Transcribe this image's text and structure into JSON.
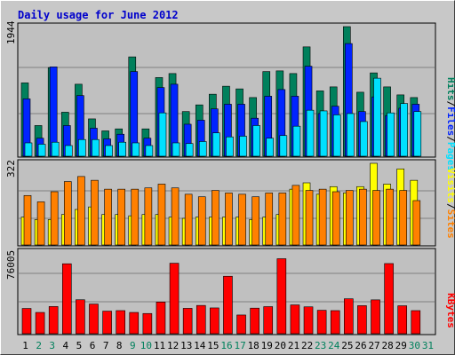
{
  "chart_data": [
    {
      "type": "bar",
      "panel": "hits-files-pages",
      "title": "Daily usage for June 2012",
      "categories": [
        "1",
        "2",
        "3",
        "4",
        "5",
        "6",
        "7",
        "8",
        "9",
        "10",
        "11",
        "12",
        "13",
        "14",
        "15",
        "16",
        "17",
        "18",
        "19",
        "20",
        "21",
        "22",
        "23",
        "24",
        "25",
        "26",
        "27",
        "28",
        "29",
        "30",
        "31"
      ],
      "ymax_label": "1944",
      "ylim": [
        0,
        1944
      ],
      "series": [
        {
          "name": "Hits",
          "color": "#00805c",
          "values": [
            1100,
            460,
            1330,
            660,
            1080,
            560,
            380,
            410,
            1490,
            410,
            1180,
            1240,
            670,
            770,
            930,
            1050,
            1010,
            880,
            1270,
            1280,
            1240,
            1640,
            980,
            1040,
            1944,
            960,
            1250,
            1040,
            920,
            880,
            null
          ]
        },
        {
          "name": "Files",
          "color": "#0024ff",
          "values": [
            860,
            270,
            1340,
            460,
            910,
            420,
            260,
            330,
            1270,
            270,
            1030,
            1080,
            480,
            540,
            710,
            780,
            780,
            570,
            900,
            1000,
            900,
            1350,
            640,
            750,
            1690,
            670,
            890,
            610,
            720,
            780,
            null
          ]
        },
        {
          "name": "Pages",
          "color": "#00e0ff",
          "values": [
            200,
            180,
            210,
            160,
            250,
            250,
            160,
            210,
            200,
            160,
            650,
            200,
            190,
            220,
            350,
            290,
            300,
            460,
            270,
            310,
            450,
            690,
            680,
            620,
            640,
            520,
            1170,
            650,
            790,
            670,
            null
          ]
        }
      ],
      "grid": true
    },
    {
      "type": "bar",
      "panel": "visits-sites",
      "categories": [
        "1",
        "2",
        "3",
        "4",
        "5",
        "6",
        "7",
        "8",
        "9",
        "10",
        "11",
        "12",
        "13",
        "14",
        "15",
        "16",
        "17",
        "18",
        "19",
        "20",
        "21",
        "22",
        "23",
        "24",
        "25",
        "26",
        "27",
        "28",
        "29",
        "30",
        "31"
      ],
      "ymax_label": "322",
      "ylim": [
        0,
        322
      ],
      "series": [
        {
          "name": "Visits",
          "color": "#ffff00",
          "values": [
            110,
            100,
            100,
            120,
            140,
            150,
            120,
            120,
            115,
            120,
            120,
            110,
            105,
            110,
            110,
            110,
            110,
            100,
            110,
            120,
            220,
            245,
            200,
            230,
            205,
            230,
            322,
            240,
            300,
            255,
            null
          ]
        },
        {
          "name": "Sites",
          "color": "#ff8000",
          "values": [
            195,
            170,
            210,
            250,
            270,
            255,
            220,
            220,
            220,
            225,
            240,
            225,
            200,
            190,
            215,
            205,
            200,
            190,
            205,
            205,
            235,
            215,
            220,
            210,
            215,
            220,
            215,
            220,
            215,
            175,
            null
          ]
        }
      ],
      "grid": true
    },
    {
      "type": "bar",
      "panel": "kbytes",
      "categories": [
        "1",
        "2",
        "3",
        "4",
        "5",
        "6",
        "7",
        "8",
        "9",
        "10",
        "11",
        "12",
        "13",
        "14",
        "15",
        "16",
        "17",
        "18",
        "19",
        "20",
        "21",
        "22",
        "23",
        "24",
        "25",
        "26",
        "27",
        "28",
        "29",
        "30",
        "31"
      ],
      "ymax_label": "76005",
      "ylim": [
        0,
        76005
      ],
      "series": [
        {
          "name": "KBytes",
          "color": "#ff0000",
          "values": [
            23500,
            19800,
            25300,
            65100,
            31600,
            27600,
            21000,
            21500,
            19800,
            18800,
            29500,
            65600,
            23600,
            26300,
            24000,
            53500,
            17400,
            23800,
            25200,
            69800,
            26800,
            25000,
            21800,
            21500,
            32500,
            26100,
            31500,
            65300,
            26000,
            21500,
            null
          ]
        }
      ],
      "grid": true
    }
  ],
  "legend": {
    "pages_label": "Pages",
    "files_label": "Files",
    "hits_label": "Hits",
    "sites_label": "Sites",
    "visits_label": "Visits",
    "kbytes_label": "KBytes",
    "separator": "/"
  },
  "colors": {
    "page_bg": "#c8c8c8",
    "plot_bg": "#c0c0c0",
    "title": "#0000cc",
    "weekend_day": "#00805c",
    "weekday": "#000000"
  },
  "weekend_days": [
    "2",
    "3",
    "9",
    "10",
    "16",
    "17",
    "23",
    "24",
    "30",
    "31"
  ]
}
